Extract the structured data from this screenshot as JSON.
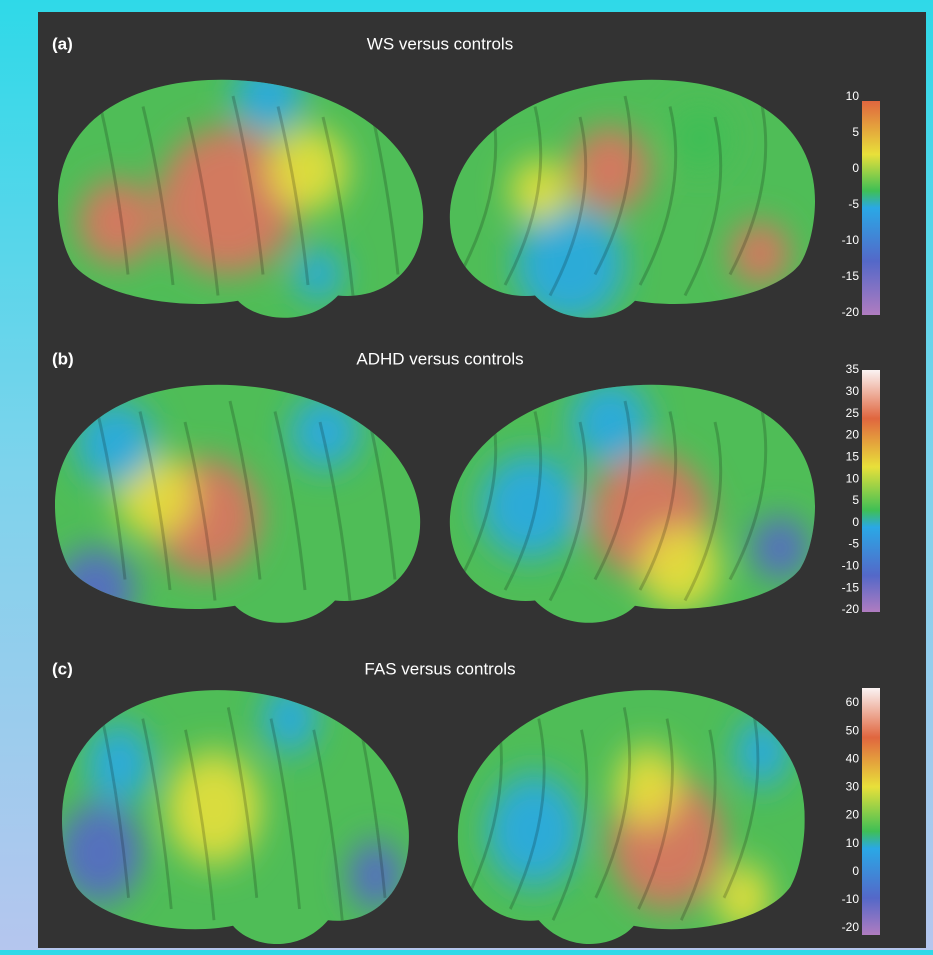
{
  "panels": [
    {
      "label": "(a)",
      "title": "WS versus controls",
      "colorbar_ticks": [
        10,
        5,
        0,
        -5,
        -10,
        -15,
        -20
      ]
    },
    {
      "label": "(b)",
      "title": "ADHD versus controls",
      "colorbar_ticks": [
        35,
        30,
        25,
        20,
        15,
        10,
        5,
        0,
        -5,
        -10,
        -15,
        -20
      ]
    },
    {
      "label": "(c)",
      "title": "FAS versus controls",
      "colorbar_ticks": [
        60,
        50,
        40,
        30,
        20,
        10,
        0,
        -10,
        -20
      ]
    }
  ]
}
